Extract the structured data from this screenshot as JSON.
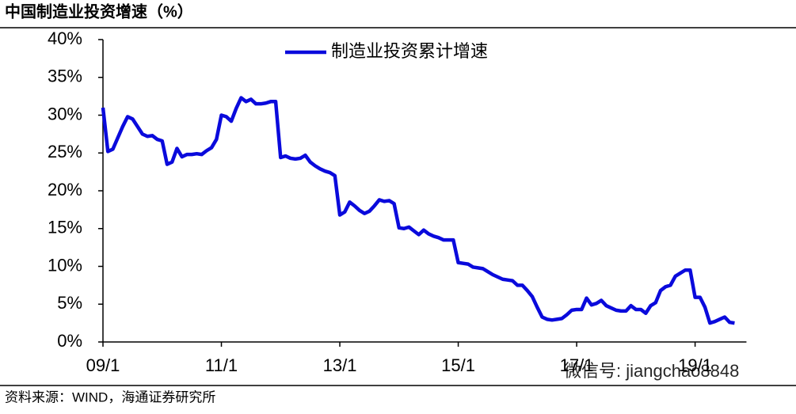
{
  "chart_data": {
    "type": "line",
    "title": "中国制造业投资增速（%）",
    "source": "资料来源：WIND，海通证券研究所",
    "watermark": "微信号: jiangchao8848",
    "categories": [
      "09/1",
      null,
      null,
      null,
      null,
      null,
      null,
      null,
      null,
      null,
      null,
      null,
      null,
      null,
      null,
      null,
      null,
      null,
      null,
      null,
      null,
      null,
      null,
      null,
      "11/1",
      null,
      null,
      null,
      null,
      null,
      null,
      null,
      null,
      null,
      null,
      null,
      null,
      null,
      null,
      null,
      null,
      null,
      null,
      null,
      null,
      null,
      null,
      null,
      "13/1",
      null,
      null,
      null,
      null,
      null,
      null,
      null,
      null,
      null,
      null,
      null,
      null,
      null,
      null,
      null,
      null,
      null,
      null,
      null,
      null,
      null,
      null,
      null,
      "15/1",
      null,
      null,
      null,
      null,
      null,
      null,
      null,
      null,
      null,
      null,
      null,
      null,
      null,
      null,
      null,
      null,
      null,
      null,
      null,
      null,
      null,
      null,
      null,
      "17/1",
      null,
      null,
      null,
      null,
      null,
      null,
      null,
      null,
      null,
      null,
      null,
      null,
      null,
      null,
      null,
      null,
      null,
      null,
      null,
      null,
      null,
      null,
      null,
      "19/1",
      null,
      null,
      null,
      null,
      null,
      null,
      null,
      null
    ],
    "series": [
      {
        "name": "制造业投资累计增速",
        "color": "#0a0adc",
        "values": [
          31,
          25.2,
          25.5,
          27,
          28.5,
          29.8,
          29.5,
          28.5,
          27.5,
          27.2,
          27.3,
          26.8,
          26.6,
          23.5,
          23.8,
          25.6,
          24.5,
          24.8,
          24.8,
          24.9,
          24.8,
          25.3,
          25.7,
          26.8,
          30,
          29.8,
          29.2,
          30.9,
          32.3,
          31.8,
          32.1,
          31.5,
          31.5,
          31.6,
          31.8,
          31.8,
          24.4,
          24.6,
          24.3,
          24.2,
          24.3,
          24.7,
          23.8,
          23.3,
          22.9,
          22.6,
          22.4,
          22.0,
          16.8,
          17.2,
          18.5,
          18.0,
          17.4,
          17.0,
          17.3,
          18.0,
          18.8,
          18.6,
          18.7,
          18.3,
          15.1,
          15.0,
          15.2,
          14.7,
          14.2,
          14.8,
          14.3,
          14.0,
          13.8,
          13.5,
          13.5,
          13.5,
          10.5,
          10.4,
          10.3,
          9.9,
          9.8,
          9.7,
          9.3,
          8.9,
          8.6,
          8.3,
          8.2,
          8.1,
          7.5,
          7.5,
          6.8,
          6.0,
          4.6,
          3.3,
          3.0,
          2.9,
          3.0,
          3.1,
          3.6,
          4.2,
          4.3,
          4.3,
          5.8,
          4.9,
          5.1,
          5.5,
          4.8,
          4.5,
          4.2,
          4.1,
          4.1,
          4.8,
          4.3,
          4.3,
          3.8,
          4.8,
          5.2,
          6.8,
          7.3,
          7.5,
          8.7,
          9.1,
          9.5,
          9.5,
          5.9,
          5.9,
          4.6,
          2.5,
          2.7,
          3.0,
          3.3,
          2.6,
          2.5
        ]
      }
    ],
    "ylim": [
      0,
      40
    ],
    "yticks": [
      {
        "value": 0,
        "label": "0%"
      },
      {
        "value": 5,
        "label": "5%"
      },
      {
        "value": 10,
        "label": "10%"
      },
      {
        "value": 15,
        "label": "15%"
      },
      {
        "value": 20,
        "label": "20%"
      },
      {
        "value": 25,
        "label": "25%"
      },
      {
        "value": 30,
        "label": "30%"
      },
      {
        "value": 35,
        "label": "35%"
      },
      {
        "value": 40,
        "label": "40%"
      }
    ],
    "legend": "top"
  }
}
